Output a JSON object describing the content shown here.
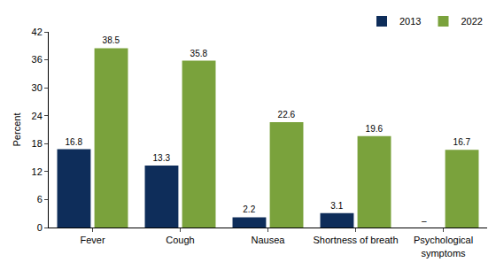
{
  "chart_data": {
    "type": "bar",
    "categories": [
      "Fever",
      "Cough",
      "Nausea",
      "Shortness of breath",
      "Psychological symptoms"
    ],
    "series": [
      {
        "name": "2013",
        "color": "#0e2d5a",
        "values": [
          16.8,
          13.3,
          2.2,
          3.1,
          null
        ],
        "value_labels": [
          "16.8",
          "13.3",
          "2.2",
          "3.1",
          "–"
        ]
      },
      {
        "name": "2022",
        "color": "#7aa23c",
        "values": [
          38.5,
          35.8,
          22.6,
          19.6,
          16.7
        ]
      }
    ],
    "y_label": "Percent",
    "ylim": [
      0,
      42
    ],
    "yticks": [
      0,
      6,
      12,
      18,
      24,
      30,
      36,
      42
    ],
    "grid": false,
    "legend": "top right",
    "data_labels": true
  }
}
